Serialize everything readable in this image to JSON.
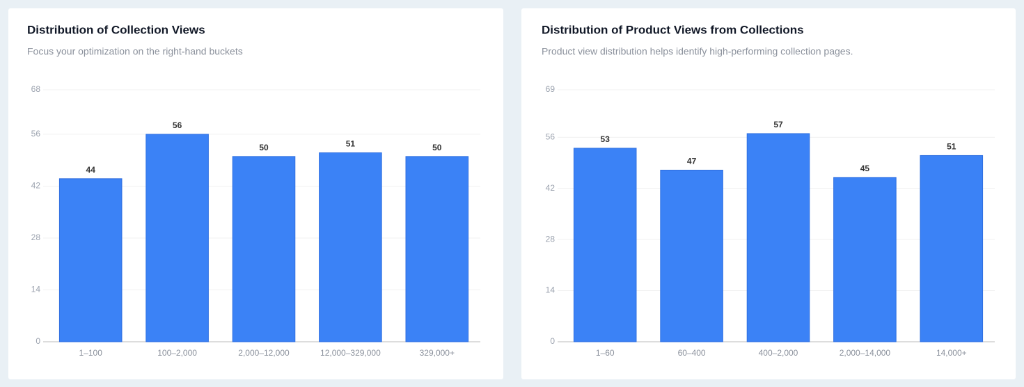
{
  "chart_data": [
    {
      "type": "bar",
      "title": "Distribution of Collection Views",
      "subtitle": "Focus your optimization on the right-hand buckets",
      "categories": [
        "1–100",
        "100–2,000",
        "2,000–12,000",
        "12,000–329,000",
        "329,000+"
      ],
      "values": [
        44,
        56,
        50,
        51,
        50
      ],
      "color": "#3b82f6",
      "ylim": [
        0,
        68
      ],
      "yticks": [
        0,
        14,
        28,
        42,
        56,
        68
      ],
      "grid": true
    },
    {
      "type": "bar",
      "title": "Distribution of Product Views from Collections",
      "subtitle": "Product view distribution helps identify high-performing collection pages.",
      "categories": [
        "1–60",
        "60–400",
        "400–2,000",
        "2,000–14,000",
        "14,000+"
      ],
      "values": [
        53,
        47,
        57,
        45,
        51
      ],
      "color": "#3b82f6",
      "ylim": [
        0,
        69
      ],
      "yticks": [
        0,
        14,
        28,
        42,
        56,
        69
      ],
      "grid": true
    }
  ]
}
